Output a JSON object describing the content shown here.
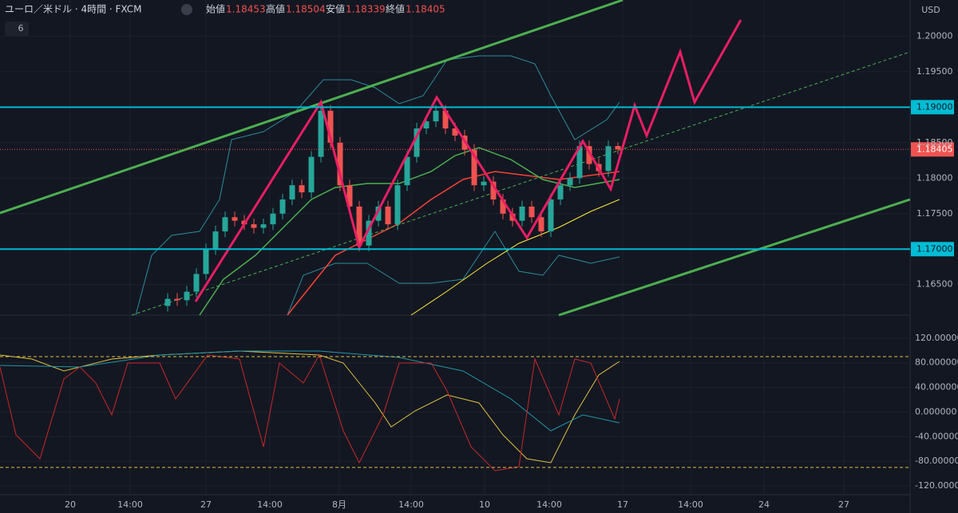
{
  "header": {
    "symbol": "ユーロ／米ドル · 4時間 · FXCM",
    "open_label": "始値",
    "open": "1.18453",
    "high_label": "高値",
    "high": "1.18504",
    "low_label": "安値",
    "low": "1.18339",
    "close_label": "終値",
    "close": "1.18405",
    "indicators": "6"
  },
  "chart_data": {
    "type": "candlestick",
    "open": [
      1.162,
      1.163,
      1.1628,
      1.164,
      1.1665,
      1.17,
      1.1725,
      1.1745,
      1.174,
      1.1735,
      1.173,
      1.1735,
      1.175,
      1.177,
      1.179,
      1.178,
      1.183,
      1.1895,
      1.185,
      1.179,
      1.176,
      1.1705,
      1.174,
      1.176,
      1.1735,
      1.179,
      1.183,
      1.187,
      1.188,
      1.1895,
      1.187,
      1.186,
      1.184,
      1.179,
      1.1795,
      1.177,
      1.175,
      1.174,
      1.176,
      1.1745,
      1.1725,
      1.177,
      1.179,
      1.18,
      1.1845,
      1.182,
      1.181,
      1.18453
    ],
    "high": [
      1.1638,
      1.1638,
      1.1648,
      1.1673,
      1.1708,
      1.1733,
      1.1753,
      1.1753,
      1.1748,
      1.1743,
      1.1743,
      1.1758,
      1.1778,
      1.1798,
      1.1798,
      1.1838,
      1.1903,
      1.1903,
      1.1858,
      1.1798,
      1.1768,
      1.1748,
      1.1768,
      1.1768,
      1.1798,
      1.1838,
      1.1878,
      1.1888,
      1.1903,
      1.1903,
      1.1878,
      1.1868,
      1.1848,
      1.1803,
      1.1803,
      1.1778,
      1.1758,
      1.1768,
      1.1768,
      1.1753,
      1.1778,
      1.1798,
      1.1808,
      1.1853,
      1.1853,
      1.1828,
      1.1853,
      1.18504
    ],
    "low": [
      1.1612,
      1.162,
      1.162,
      1.1632,
      1.1657,
      1.1692,
      1.1717,
      1.1732,
      1.1727,
      1.1722,
      1.1722,
      1.1727,
      1.1742,
      1.1762,
      1.1772,
      1.1772,
      1.1822,
      1.1842,
      1.1782,
      1.1752,
      1.1697,
      1.1697,
      1.1732,
      1.1727,
      1.1727,
      1.1782,
      1.1822,
      1.1862,
      1.1872,
      1.1862,
      1.1852,
      1.1832,
      1.1782,
      1.1782,
      1.1762,
      1.1742,
      1.1732,
      1.1732,
      1.1737,
      1.1717,
      1.1717,
      1.1762,
      1.1782,
      1.1792,
      1.1812,
      1.1802,
      1.1802,
      1.18339
    ],
    "close": [
      1.163,
      1.1628,
      1.164,
      1.1665,
      1.17,
      1.1725,
      1.1745,
      1.174,
      1.1735,
      1.173,
      1.1735,
      1.175,
      1.177,
      1.179,
      1.178,
      1.183,
      1.1895,
      1.185,
      1.179,
      1.176,
      1.1705,
      1.174,
      1.176,
      1.1735,
      1.179,
      1.183,
      1.187,
      1.188,
      1.1895,
      1.187,
      1.186,
      1.184,
      1.179,
      1.1795,
      1.177,
      1.175,
      1.174,
      1.176,
      1.1745,
      1.1725,
      1.177,
      1.179,
      1.18,
      1.1845,
      1.182,
      1.181,
      1.1845,
      1.18405
    ],
    "up_color": "#26a69a",
    "down_color": "#ef5350",
    "ylim": [
      1.1607,
      1.2051
    ],
    "yticks": [
      {
        "value": 1.2,
        "label": "1.20000"
      },
      {
        "value": 1.195,
        "label": "1.19500"
      },
      {
        "value": 1.185,
        "label": "1.18500"
      },
      {
        "value": 1.18,
        "label": "1.18000"
      },
      {
        "value": 1.175,
        "label": "1.17500"
      },
      {
        "value": 1.165,
        "label": "1.16500"
      }
    ],
    "currency": "USD",
    "levels": [
      {
        "value": 1.19,
        "label": "1.19000"
      },
      {
        "value": 1.17,
        "label": "1.17000"
      }
    ],
    "last": {
      "value": 1.18405,
      "label": "1.18405"
    },
    "x_labels": [
      "20",
      "14:00",
      "27",
      "14:00",
      "8月",
      "14:00",
      "10",
      "14:00",
      "17",
      "14:00",
      "24",
      "27"
    ]
  },
  "oscillator": {
    "ylim": [
      -134.2,
      157.4
    ],
    "yticks": [
      {
        "value": 120,
        "label": "120.000000"
      },
      {
        "value": 80,
        "label": "80.000000"
      },
      {
        "value": 40,
        "label": "40.000000"
      },
      {
        "value": 0,
        "label": "0.000000"
      },
      {
        "value": -40,
        "label": "-40.000000"
      },
      {
        "value": -80,
        "label": "-80.000000"
      },
      {
        "value": -120,
        "label": "-120.000000"
      }
    ],
    "bands": [
      90,
      -90
    ]
  }
}
